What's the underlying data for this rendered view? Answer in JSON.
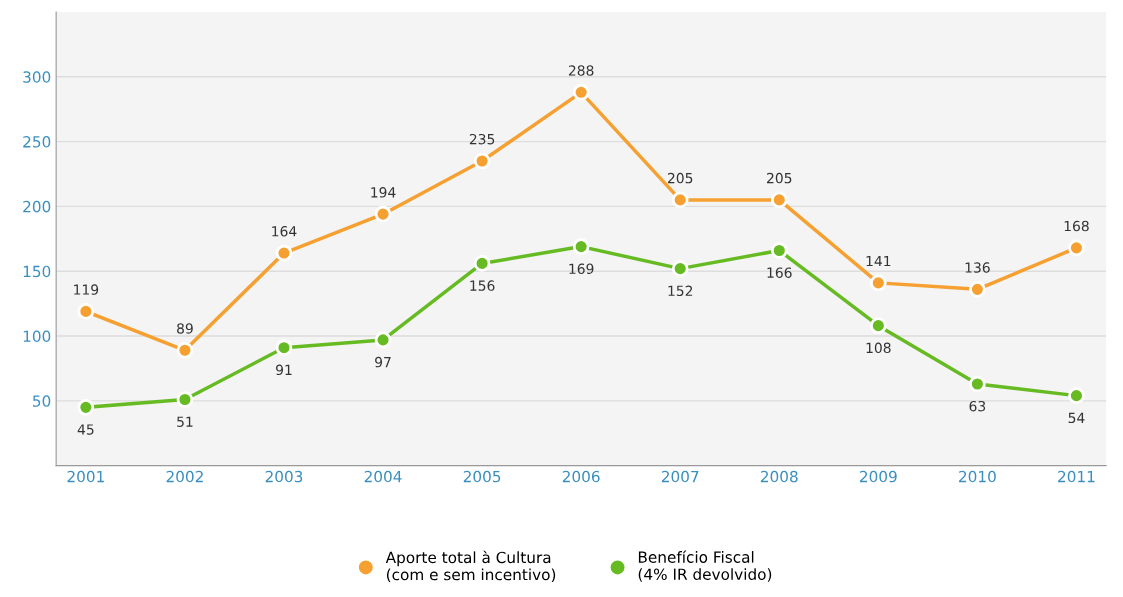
{
  "chart_data": {
    "type": "line",
    "categories": [
      "2001",
      "2002",
      "2003",
      "2004",
      "2005",
      "2006",
      "2007",
      "2008",
      "2009",
      "2010",
      "2011"
    ],
    "series": [
      {
        "name": "Aporte total à Cultura\n(com e sem incentivo)",
        "color": "#f5a030",
        "values": [
          119,
          89,
          164,
          194,
          235,
          288,
          205,
          205,
          141,
          136,
          168
        ]
      },
      {
        "name": "Benefício Fiscal\n(4% IR devolvido)",
        "color": "#66bb22",
        "values": [
          45,
          51,
          91,
          97,
          156,
          169,
          152,
          166,
          108,
          63,
          54
        ]
      }
    ],
    "ylim": [
      0,
      350
    ],
    "yticks": [
      50,
      100,
      150,
      200,
      250,
      300
    ],
    "grid": "y",
    "legend": "bottom",
    "marker": "circle",
    "line_style": "solid",
    "data_labels": true
  }
}
